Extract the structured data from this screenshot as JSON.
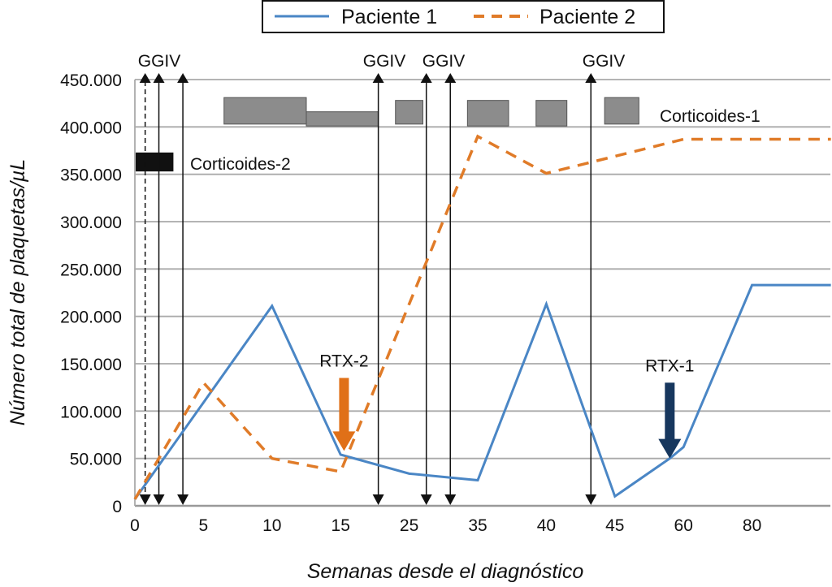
{
  "chart_data": {
    "type": "line",
    "title": "",
    "xlabel": "Semanas desde el diagnóstico",
    "ylabel": "Número total de plaquetas/µL",
    "x_ticks": [
      "0",
      "5",
      "10",
      "15",
      "25",
      "35",
      "40",
      "45",
      "60",
      "80"
    ],
    "x_scale": "categorical-equal-spacing",
    "y_ticks": [
      "0",
      "50.000",
      "100.000",
      "150.000",
      "200.000",
      "250.000",
      "300.000",
      "350.000",
      "400.000",
      "450.000"
    ],
    "ylim": [
      0,
      450000
    ],
    "grid": "horizontal",
    "legend": {
      "placement": "top-center",
      "entries": [
        {
          "name": "Paciente 1",
          "style": "solid",
          "color": "#4a86c5"
        },
        {
          "name": "Paciente 2",
          "style": "dashed",
          "color": "#e07b28"
        }
      ]
    },
    "series": [
      {
        "name": "Paciente 1",
        "color": "#4a86c5",
        "style": "solid",
        "points": [
          {
            "x": 0,
            "y": 7000
          },
          {
            "x": 10,
            "y": 211000
          },
          {
            "x": 15,
            "y": 54000
          },
          {
            "x": 25,
            "y": 34000
          },
          {
            "x": 35,
            "y": 27000
          },
          {
            "x": 40,
            "y": 213000
          },
          {
            "x": 45,
            "y": 10000
          },
          {
            "x": 57,
            "y": 50000
          },
          {
            "x": 60,
            "y": 62000
          },
          {
            "x": 80,
            "y": 233000
          },
          {
            "x": "end",
            "y": 233000
          }
        ],
        "tick_index_positions": [
          0,
          2,
          3,
          4,
          5,
          6,
          7,
          7.8,
          8,
          9,
          10.15
        ]
      },
      {
        "name": "Paciente 2",
        "color": "#e07b28",
        "style": "dashed",
        "points": [
          {
            "x": 0,
            "y": 7000
          },
          {
            "x": 5,
            "y": 130000
          },
          {
            "x": 10,
            "y": 50000
          },
          {
            "x": 15,
            "y": 36000
          },
          {
            "x": 35,
            "y": 390000
          },
          {
            "x": 40,
            "y": 351000
          },
          {
            "x": 60,
            "y": 387000
          },
          {
            "x": "end",
            "y": 387000
          }
        ],
        "tick_index_positions": [
          0,
          1,
          2,
          3,
          5,
          6,
          8,
          10.15
        ]
      }
    ],
    "annotations": {
      "ggiv_labels": [
        {
          "text": "GGIV",
          "near_index": 0.35
        },
        {
          "text": "GGIV",
          "near_index": 3.6
        },
        {
          "text": "GGIV",
          "near_index": 4.5
        },
        {
          "text": "GGIV",
          "near_index": 6.65
        }
      ],
      "ggiv_arrows": [
        {
          "index": 0.15,
          "style": "dashed"
        },
        {
          "index": 0.35,
          "style": "solid"
        },
        {
          "index": 0.7,
          "style": "solid"
        },
        {
          "index": 3.55,
          "style": "solid"
        },
        {
          "index": 4.25,
          "style": "solid"
        },
        {
          "index": 4.6,
          "style": "solid"
        },
        {
          "index": 6.65,
          "style": "solid"
        }
      ],
      "corticoides_1": {
        "label": "Corticoides-1",
        "color": "#8c8c8c",
        "blocks": [
          {
            "from": 1.3,
            "to": 2.5,
            "y_low": 403000,
            "y_high": 431000
          },
          {
            "from": 2.5,
            "to": 3.55,
            "y_low": 401000,
            "y_high": 416000
          },
          {
            "from": 3.8,
            "to": 4.2,
            "y_low": 403000,
            "y_high": 428000
          },
          {
            "from": 4.85,
            "to": 5.45,
            "y_low": 401000,
            "y_high": 428000
          },
          {
            "from": 5.85,
            "to": 6.3,
            "y_low": 401000,
            "y_high": 428000
          },
          {
            "from": 6.85,
            "to": 7.35,
            "y_low": 403000,
            "y_high": 431000
          }
        ]
      },
      "corticoides_2": {
        "label": "Corticoides-2",
        "color": "#111111",
        "blocks": [
          {
            "from": 0,
            "to": 0.55,
            "y_low": 353000,
            "y_high": 373000
          }
        ]
      },
      "rtx": [
        {
          "label": "RTX-2",
          "color": "#e07018",
          "index": 3.05,
          "y_top": 135000,
          "y_tip": 58000
        },
        {
          "label": "RTX-1",
          "color": "#17375e",
          "index": 7.8,
          "y_top": 130000,
          "y_tip": 50000
        }
      ]
    }
  }
}
